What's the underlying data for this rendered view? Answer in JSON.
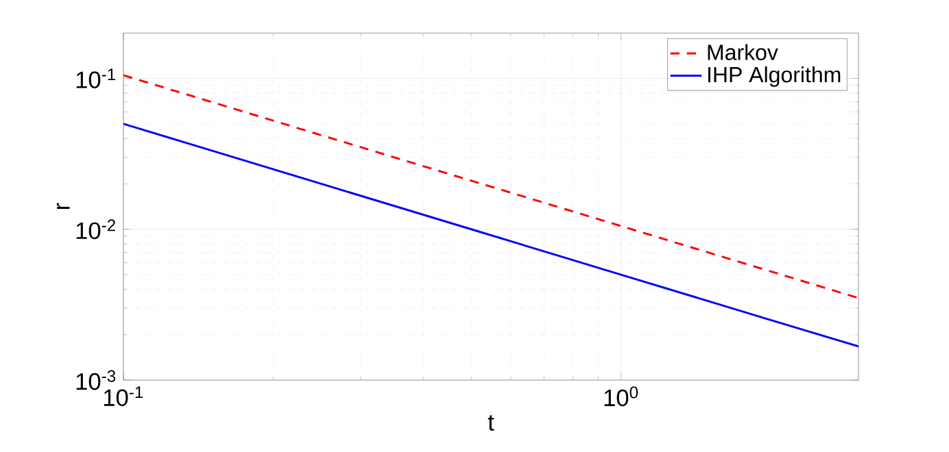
{
  "chart_data": {
    "type": "line",
    "xlabel": "t",
    "ylabel": "r",
    "log": "xy",
    "xlim": [
      0.1,
      3
    ],
    "ylim": [
      0.001,
      0.2
    ],
    "xticks": [
      {
        "value": 0.1,
        "label": "10$^{-1}$"
      },
      {
        "value": 1,
        "label": "10$^{0}$"
      }
    ],
    "yticks": [
      {
        "value": 0.001,
        "label": "10$^{-3}$"
      },
      {
        "value": 0.01,
        "label": "10$^{-2}$"
      },
      {
        "value": 0.1,
        "label": "10$^{-1}$"
      }
    ],
    "grid": true,
    "legend": "top right",
    "marker": "none",
    "x": [
      0.1,
      0.2,
      0.5,
      1,
      2,
      3
    ],
    "series": [
      {
        "name": "Markov",
        "color": "#ff0000",
        "line_style": "dashed",
        "values": [
          0.105,
          0.0525,
          0.021,
          0.0105,
          0.00525,
          0.0035
        ]
      },
      {
        "name": "IHP Algorithm",
        "color": "#0000ff",
        "line_style": "solid",
        "values": [
          0.05,
          0.025,
          0.01,
          0.005,
          0.0025,
          0.00167
        ]
      }
    ]
  }
}
